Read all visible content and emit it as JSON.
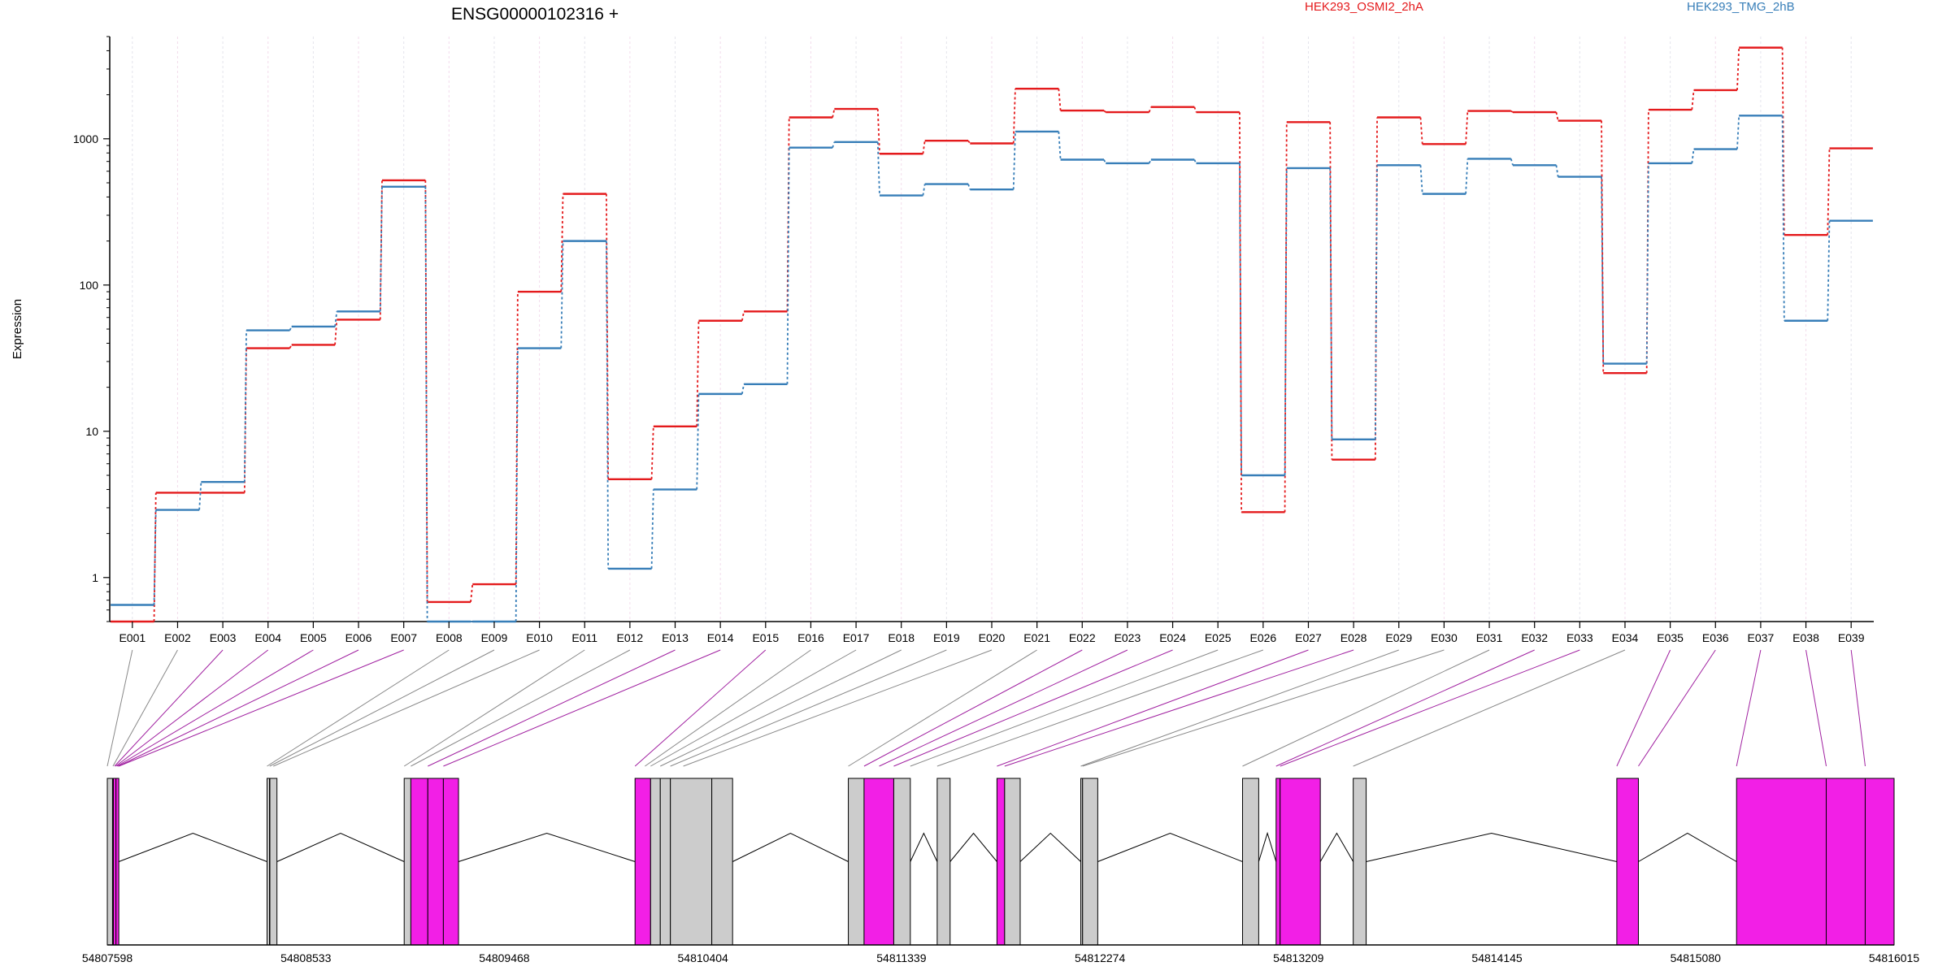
{
  "chart_data": {
    "type": "line",
    "title": "ENSG00000102316 +",
    "ylabel": "Expression",
    "xlabel": "",
    "yscale": "log",
    "ylim": [
      0.5,
      5000
    ],
    "yticks": [
      {
        "value": 1,
        "label": "1"
      },
      {
        "value": 10,
        "label": "10"
      },
      {
        "value": 100,
        "label": "100"
      },
      {
        "value": 1000,
        "label": "1000"
      }
    ],
    "categories": [
      "E001",
      "E002",
      "E003",
      "E004",
      "E005",
      "E006",
      "E007",
      "E008",
      "E009",
      "E010",
      "E011",
      "E012",
      "E013",
      "E014",
      "E015",
      "E016",
      "E017",
      "E018",
      "E019",
      "E020",
      "E021",
      "E022",
      "E023",
      "E024",
      "E025",
      "E026",
      "E027",
      "E028",
      "E029",
      "E030",
      "E031",
      "E032",
      "E033",
      "E034",
      "E035",
      "E036",
      "E037",
      "E038",
      "E039"
    ],
    "series": [
      {
        "name": "HEK293_OSMI2_2hA",
        "color": "#e41a1c",
        "values": [
          0.5,
          3.8,
          3.8,
          37,
          39,
          58,
          520,
          0.68,
          0.9,
          90,
          420,
          4.7,
          10.8,
          57,
          66,
          1400,
          1600,
          790,
          970,
          930,
          2200,
          1560,
          1520,
          1650,
          1520,
          2.8,
          1300,
          6.4,
          1400,
          920,
          1550,
          1520,
          1330,
          25,
          1580,
          2150,
          4200,
          220,
          860
        ]
      },
      {
        "name": "HEK293_TMG_2hB",
        "color": "#377eb8",
        "values": [
          0.65,
          2.9,
          4.5,
          49,
          52,
          66,
          470,
          0.5,
          0.5,
          37,
          200,
          1.15,
          4.0,
          18,
          21,
          870,
          950,
          410,
          490,
          450,
          1120,
          720,
          680,
          720,
          680,
          5.0,
          630,
          8.8,
          660,
          420,
          730,
          660,
          550,
          29,
          680,
          850,
          1440,
          57,
          275
        ]
      }
    ],
    "gene_model": {
      "coordinate_labels": [
        "54807598",
        "54808533",
        "54809468",
        "54810404",
        "54811339",
        "54812274",
        "54813209",
        "54814145",
        "54815080",
        "54816015"
      ],
      "exon_fill": "#f21fe6",
      "intron_fill": "#cccccc"
    }
  }
}
